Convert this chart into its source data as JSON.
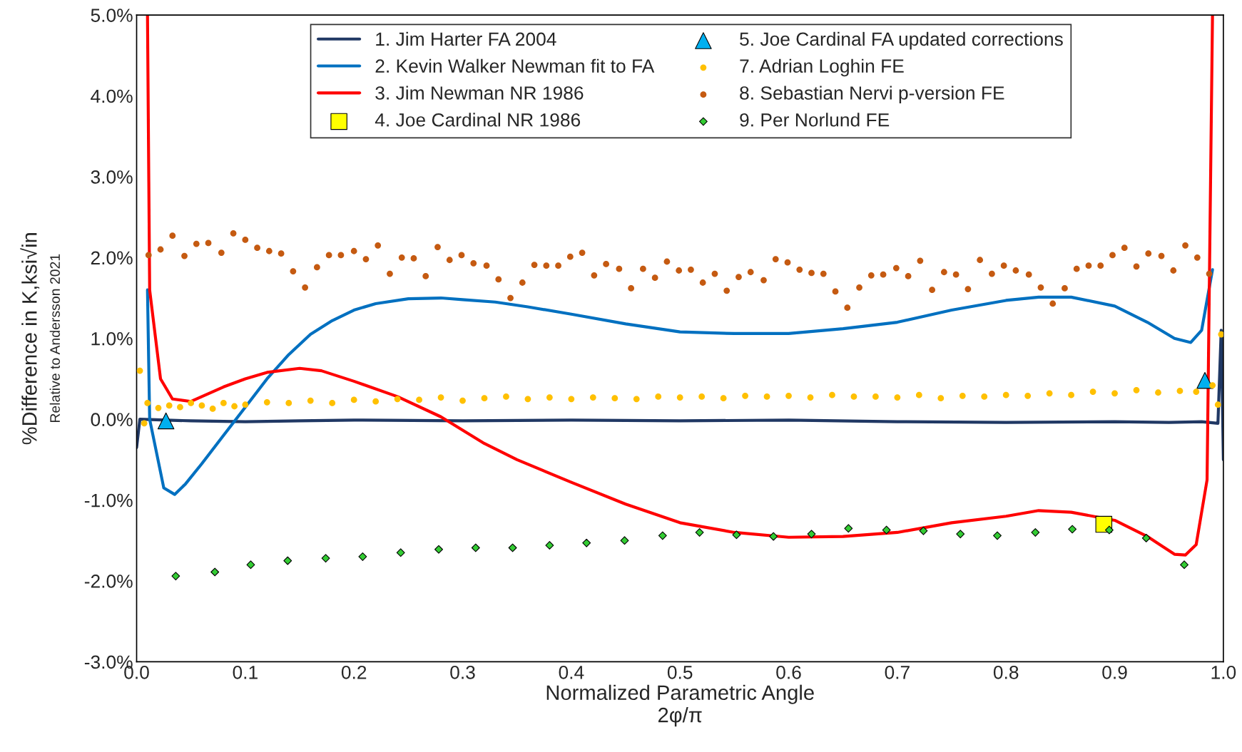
{
  "chart_data": {
    "type": "line",
    "xlabel": "Normalized Parametric Angle\n2φ/π",
    "ylabel": "%Difference in K,ksi√in",
    "annotations": [
      "Relative to Andersson 2021"
    ],
    "xlim": [
      0,
      1
    ],
    "xticks": [
      {
        "value": 0,
        "label": "0.0"
      },
      {
        "value": 0.1,
        "label": "0.1"
      },
      {
        "value": 0.2,
        "label": "0.2"
      },
      {
        "value": 0.3,
        "label": "0.3"
      },
      {
        "value": 0.4,
        "label": "0.4"
      },
      {
        "value": 0.5,
        "label": "0.5"
      },
      {
        "value": 0.6,
        "label": "0.6"
      },
      {
        "value": 0.7,
        "label": "0.7"
      },
      {
        "value": 0.8,
        "label": "0.8"
      },
      {
        "value": 0.9,
        "label": "0.9"
      },
      {
        "value": 1,
        "label": "1.0"
      }
    ],
    "ylim": [
      -3,
      5
    ],
    "yticks": [
      {
        "value": -3,
        "label": "-3.0%"
      },
      {
        "value": -2,
        "label": "-2.0%"
      },
      {
        "value": -1,
        "label": "-1.0%"
      },
      {
        "value": 0,
        "label": "0.0%"
      },
      {
        "value": 1,
        "label": "1.0%"
      },
      {
        "value": 2,
        "label": "2.0%"
      },
      {
        "value": 3,
        "label": "3.0%"
      },
      {
        "value": 4,
        "label": "4.0%"
      },
      {
        "value": 5,
        "label": "5.0%"
      }
    ],
    "legend": "top",
    "grid": false,
    "series": [
      {
        "name": "1. Jim Harter FA 2004",
        "color": "#203864",
        "type": "line",
        "marker": "none",
        "x": [
          0,
          0.003,
          0.05,
          0.1,
          0.15,
          0.2,
          0.3,
          0.4,
          0.5,
          0.6,
          0.7,
          0.8,
          0.9,
          0.95,
          0.98,
          0.995,
          0.998,
          1.0
        ],
        "values": [
          -0.35,
          0.0,
          -0.02,
          -0.03,
          -0.02,
          -0.01,
          -0.02,
          -0.01,
          -0.02,
          -0.01,
          -0.03,
          -0.04,
          -0.03,
          -0.04,
          -0.03,
          -0.05,
          1.1,
          -0.5
        ]
      },
      {
        "name": "2. Kevin Walker Newman fit to FA",
        "color": "#0070c0",
        "type": "line",
        "marker": "none",
        "x": [
          0.01,
          0.012,
          0.025,
          0.035,
          0.045,
          0.06,
          0.08,
          0.1,
          0.12,
          0.14,
          0.16,
          0.18,
          0.2,
          0.22,
          0.25,
          0.28,
          0.3,
          0.33,
          0.36,
          0.4,
          0.45,
          0.5,
          0.55,
          0.6,
          0.65,
          0.7,
          0.75,
          0.8,
          0.83,
          0.86,
          0.9,
          0.93,
          0.955,
          0.97,
          0.98,
          0.99
        ],
        "values": [
          1.6,
          0.0,
          -0.85,
          -0.93,
          -0.8,
          -0.55,
          -0.2,
          0.15,
          0.5,
          0.8,
          1.05,
          1.22,
          1.35,
          1.43,
          1.49,
          1.5,
          1.48,
          1.45,
          1.39,
          1.3,
          1.18,
          1.08,
          1.06,
          1.06,
          1.12,
          1.2,
          1.35,
          1.47,
          1.51,
          1.51,
          1.4,
          1.2,
          1.0,
          0.95,
          1.1,
          1.85
        ]
      },
      {
        "name": "3. Jim Newman NR 1986",
        "color": "#ff0000",
        "type": "line",
        "marker": "none",
        "x": [
          0.01,
          0.012,
          0.022,
          0.033,
          0.05,
          0.08,
          0.1,
          0.12,
          0.15,
          0.17,
          0.2,
          0.24,
          0.28,
          0.32,
          0.35,
          0.4,
          0.45,
          0.5,
          0.55,
          0.6,
          0.65,
          0.7,
          0.75,
          0.8,
          0.83,
          0.86,
          0.9,
          0.93,
          0.955,
          0.965,
          0.975,
          0.985,
          0.99
        ],
        "values": [
          5.0,
          1.6,
          0.5,
          0.25,
          0.22,
          0.4,
          0.5,
          0.58,
          0.63,
          0.6,
          0.47,
          0.28,
          0.03,
          -0.3,
          -0.5,
          -0.78,
          -1.05,
          -1.28,
          -1.4,
          -1.46,
          -1.45,
          -1.4,
          -1.28,
          -1.2,
          -1.13,
          -1.15,
          -1.25,
          -1.45,
          -1.67,
          -1.68,
          -1.55,
          -0.75,
          5.0
        ]
      },
      {
        "name": "4. Joe Cardinal NR 1986",
        "color": "#ffff00",
        "type": "scatter",
        "marker": "square",
        "x": [
          0.89
        ],
        "values": [
          -1.3
        ]
      },
      {
        "name": "5. Joe Cardinal FA updated corrections",
        "color": "#00b0f0",
        "type": "scatter",
        "marker": "triangle",
        "x": [
          0.027,
          0.983
        ],
        "values": [
          -0.02,
          0.48
        ]
      },
      {
        "name": "7. Adrian Loghin FE",
        "color": "#ffc000",
        "type": "scatter",
        "marker": "circle",
        "x": [
          0.003,
          0.007,
          0.01,
          0.02,
          0.03,
          0.04,
          0.05,
          0.06,
          0.07,
          0.08,
          0.09,
          0.1,
          0.12,
          0.14,
          0.16,
          0.18,
          0.2,
          0.22,
          0.24,
          0.26,
          0.28,
          0.3,
          0.32,
          0.34,
          0.36,
          0.38,
          0.4,
          0.42,
          0.44,
          0.46,
          0.48,
          0.5,
          0.52,
          0.54,
          0.56,
          0.58,
          0.6,
          0.62,
          0.64,
          0.66,
          0.68,
          0.7,
          0.72,
          0.74,
          0.76,
          0.78,
          0.8,
          0.82,
          0.84,
          0.86,
          0.88,
          0.9,
          0.92,
          0.94,
          0.96,
          0.975,
          0.99,
          0.995,
          0.998
        ],
        "values": [
          0.6,
          -0.05,
          0.2,
          0.14,
          0.17,
          0.15,
          0.2,
          0.17,
          0.13,
          0.2,
          0.16,
          0.18,
          0.21,
          0.2,
          0.23,
          0.2,
          0.24,
          0.22,
          0.25,
          0.24,
          0.27,
          0.23,
          0.26,
          0.28,
          0.25,
          0.27,
          0.25,
          0.27,
          0.26,
          0.25,
          0.28,
          0.27,
          0.28,
          0.26,
          0.29,
          0.28,
          0.29,
          0.27,
          0.3,
          0.28,
          0.28,
          0.27,
          0.3,
          0.26,
          0.29,
          0.28,
          0.3,
          0.29,
          0.32,
          0.3,
          0.34,
          0.32,
          0.36,
          0.33,
          0.35,
          0.34,
          0.42,
          0.18,
          1.05
        ]
      },
      {
        "name": "8. Sebastian Nervi p-version FE",
        "color": "#c55a11",
        "type": "scatter",
        "marker": "circle",
        "x": [
          0.011,
          0.022,
          0.033,
          0.044,
          0.055,
          0.066,
          0.078,
          0.089,
          0.1,
          0.111,
          0.122,
          0.133,
          0.144,
          0.155,
          0.166,
          0.177,
          0.188,
          0.2,
          0.211,
          0.222,
          0.233,
          0.244,
          0.255,
          0.266,
          0.277,
          0.288,
          0.299,
          0.31,
          0.322,
          0.333,
          0.344,
          0.355,
          0.366,
          0.377,
          0.388,
          0.399,
          0.41,
          0.421,
          0.432,
          0.444,
          0.455,
          0.466,
          0.477,
          0.488,
          0.499,
          0.51,
          0.521,
          0.532,
          0.543,
          0.554,
          0.565,
          0.577,
          0.588,
          0.599,
          0.61,
          0.621,
          0.632,
          0.643,
          0.654,
          0.665,
          0.676,
          0.687,
          0.699,
          0.71,
          0.721,
          0.732,
          0.743,
          0.754,
          0.765,
          0.776,
          0.787,
          0.798,
          0.809,
          0.821,
          0.832,
          0.843,
          0.854,
          0.865,
          0.876,
          0.887,
          0.898,
          0.909,
          0.92,
          0.931,
          0.943,
          0.954,
          0.965,
          0.976,
          0.987
        ],
        "values": [
          2.03,
          2.1,
          2.27,
          2.02,
          2.17,
          2.18,
          2.06,
          2.3,
          2.22,
          2.12,
          2.08,
          2.05,
          1.83,
          1.63,
          1.88,
          2.03,
          2.03,
          2.08,
          1.98,
          2.15,
          1.8,
          2.0,
          1.99,
          1.77,
          2.13,
          1.97,
          2.03,
          1.93,
          1.9,
          1.73,
          1.5,
          1.69,
          1.91,
          1.9,
          1.9,
          2.01,
          2.06,
          1.78,
          1.92,
          1.86,
          1.62,
          1.86,
          1.75,
          1.95,
          1.84,
          1.85,
          1.69,
          1.8,
          1.59,
          1.76,
          1.82,
          1.72,
          1.98,
          1.94,
          1.85,
          1.81,
          1.8,
          1.58,
          1.38,
          1.63,
          1.78,
          1.79,
          1.87,
          1.77,
          1.96,
          1.6,
          1.82,
          1.79,
          1.61,
          1.97,
          1.8,
          1.9,
          1.84,
          1.79,
          1.63,
          1.43,
          1.62,
          1.86,
          1.9,
          1.9,
          2.03,
          2.12,
          1.89,
          2.05,
          2.02,
          1.84,
          2.15,
          2.0,
          1.8
        ]
      },
      {
        "name": "9. Per Norlund FE",
        "color": "#33cc33",
        "type": "scatter",
        "marker": "diamond",
        "x": [
          0.036,
          0.072,
          0.105,
          0.139,
          0.174,
          0.208,
          0.243,
          0.278,
          0.312,
          0.346,
          0.38,
          0.414,
          0.449,
          0.484,
          0.518,
          0.552,
          0.586,
          0.621,
          0.655,
          0.69,
          0.724,
          0.758,
          0.792,
          0.827,
          0.861,
          0.895,
          0.929,
          0.964
        ],
        "values": [
          -1.94,
          -1.89,
          -1.8,
          -1.75,
          -1.72,
          -1.7,
          -1.65,
          -1.61,
          -1.59,
          -1.59,
          -1.56,
          -1.53,
          -1.5,
          -1.44,
          -1.4,
          -1.43,
          -1.45,
          -1.42,
          -1.35,
          -1.37,
          -1.38,
          -1.42,
          -1.44,
          -1.4,
          -1.36,
          -1.37,
          -1.47,
          -1.8
        ]
      }
    ]
  }
}
